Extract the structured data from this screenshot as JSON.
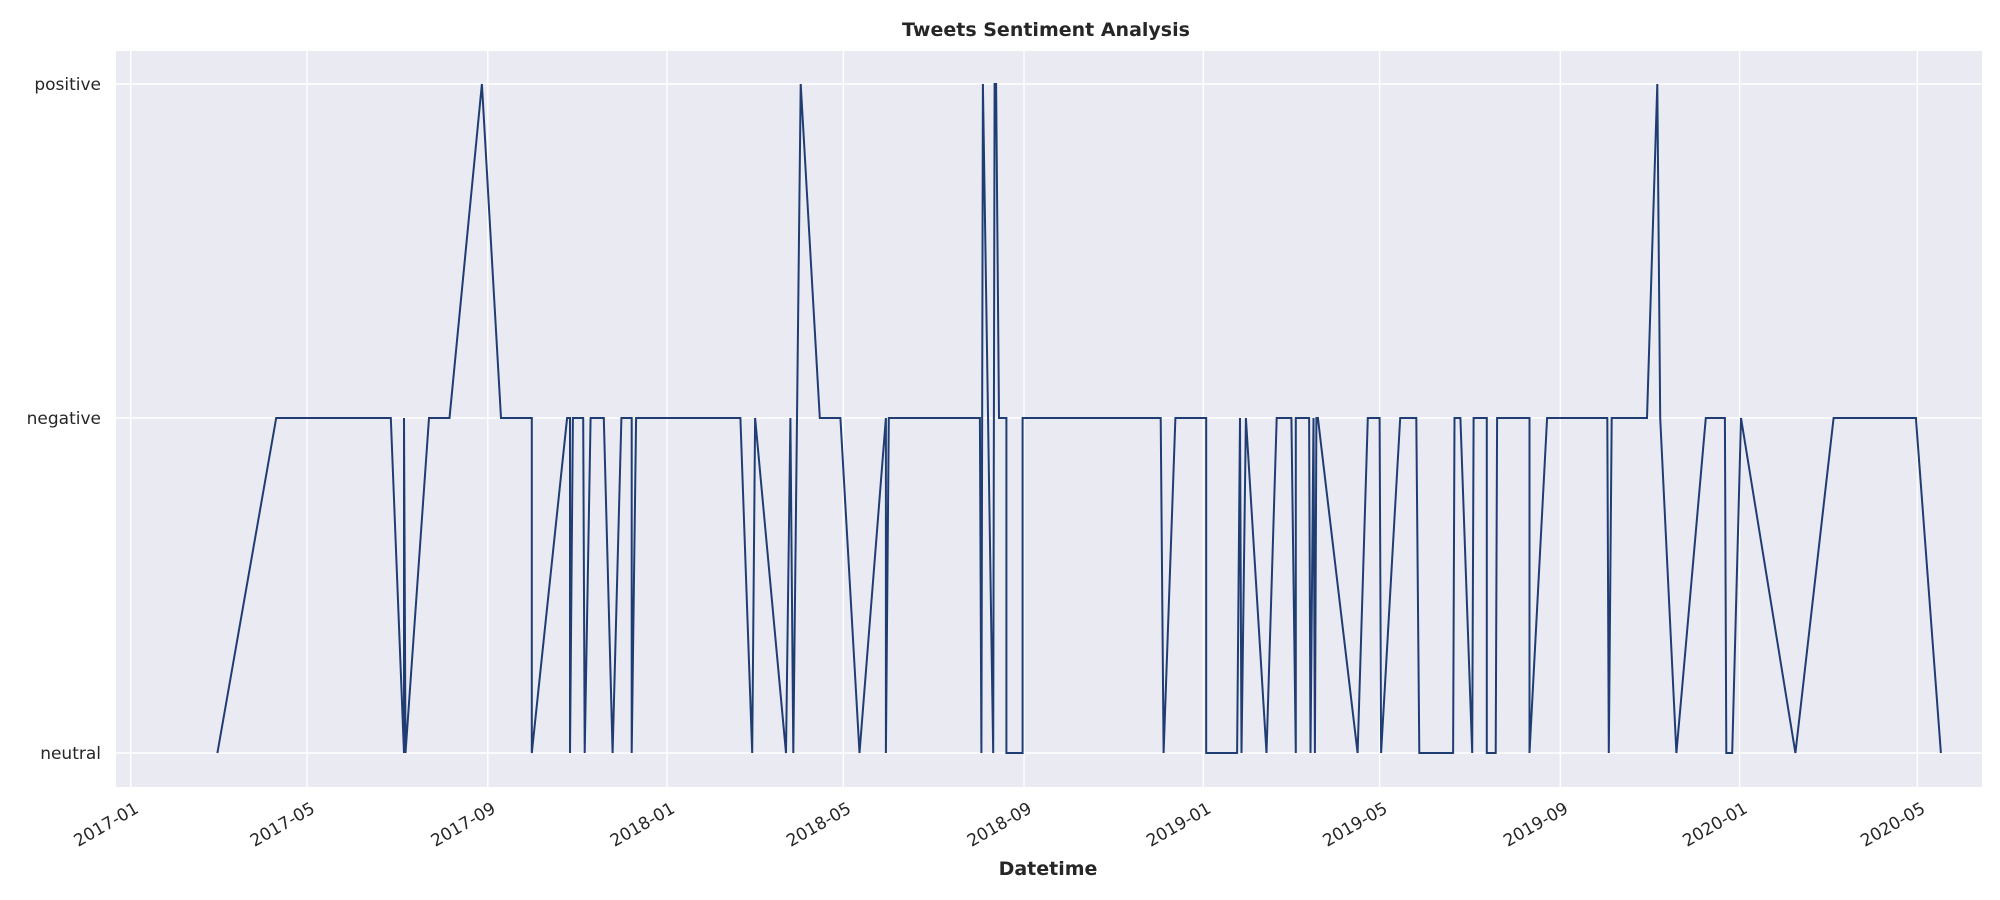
{
  "chart_data": {
    "type": "line",
    "title": "Tweets Sentiment Analysis",
    "xlabel": "Datetime",
    "ylabel": "",
    "y_categories": [
      "neutral",
      "negative",
      "positive"
    ],
    "x_ticks": [
      "2017-01",
      "2017-05",
      "2017-09",
      "2018-01",
      "2018-05",
      "2018-09",
      "2019-01",
      "2019-05",
      "2019-09",
      "2020-01",
      "2020-05"
    ],
    "xlim": [
      "2016-12-22",
      "2020-06-14"
    ],
    "grid": true,
    "line_color": "#1f3d73",
    "background_color": "#eaeaf2",
    "series": [
      {
        "points": [
          [
            "2017-03-01",
            "neutral"
          ],
          [
            "2017-04-10",
            "negative"
          ],
          [
            "2017-06-27",
            "negative"
          ],
          [
            "2017-07-06",
            "neutral"
          ],
          [
            "2017-07-06",
            "negative"
          ],
          [
            "2017-07-07",
            "neutral"
          ],
          [
            "2017-07-23",
            "negative"
          ],
          [
            "2017-08-06",
            "negative"
          ],
          [
            "2017-08-28",
            "positive"
          ],
          [
            "2017-09-10",
            "negative"
          ],
          [
            "2017-10-01",
            "negative"
          ],
          [
            "2017-10-01",
            "neutral"
          ],
          [
            "2017-10-25",
            "negative"
          ],
          [
            "2017-10-27",
            "negative"
          ],
          [
            "2017-10-27",
            "neutral"
          ],
          [
            "2017-10-29",
            "negative"
          ],
          [
            "2017-11-05",
            "negative"
          ],
          [
            "2017-11-06",
            "neutral"
          ],
          [
            "2017-11-10",
            "negative"
          ],
          [
            "2017-11-19",
            "negative"
          ],
          [
            "2017-11-25",
            "neutral"
          ],
          [
            "2017-12-01",
            "negative"
          ],
          [
            "2017-12-08",
            "negative"
          ],
          [
            "2017-12-08",
            "neutral"
          ],
          [
            "2017-12-11",
            "negative"
          ],
          [
            "2018-02-20",
            "negative"
          ],
          [
            "2018-02-28",
            "neutral"
          ],
          [
            "2018-03-02",
            "negative"
          ],
          [
            "2018-03-23",
            "neutral"
          ],
          [
            "2018-03-26",
            "negative"
          ],
          [
            "2018-03-28",
            "neutral"
          ],
          [
            "2018-04-02",
            "positive"
          ],
          [
            "2018-04-15",
            "negative"
          ],
          [
            "2018-04-29",
            "negative"
          ],
          [
            "2018-05-12",
            "neutral"
          ],
          [
            "2018-05-30",
            "negative"
          ],
          [
            "2018-05-30",
            "neutral"
          ],
          [
            "2018-06-01",
            "negative"
          ],
          [
            "2018-08-02",
            "negative"
          ],
          [
            "2018-08-03",
            "neutral"
          ],
          [
            "2018-08-04",
            "positive"
          ],
          [
            "2018-08-11",
            "neutral"
          ],
          [
            "2018-08-12",
            "positive"
          ],
          [
            "2018-08-13",
            "positive"
          ],
          [
            "2018-08-15",
            "negative"
          ],
          [
            "2018-08-20",
            "negative"
          ],
          [
            "2018-08-20",
            "neutral"
          ],
          [
            "2018-08-31",
            "neutral"
          ],
          [
            "2018-08-31",
            "negative"
          ],
          [
            "2018-12-03",
            "negative"
          ],
          [
            "2018-12-05",
            "neutral"
          ],
          [
            "2018-12-13",
            "negative"
          ],
          [
            "2019-01-03",
            "negative"
          ],
          [
            "2019-01-03",
            "neutral"
          ],
          [
            "2019-01-24",
            "neutral"
          ],
          [
            "2019-01-26",
            "negative"
          ],
          [
            "2019-01-27",
            "neutral"
          ],
          [
            "2019-01-30",
            "negative"
          ],
          [
            "2019-02-13",
            "neutral"
          ],
          [
            "2019-02-20",
            "negative"
          ],
          [
            "2019-03-02",
            "negative"
          ],
          [
            "2019-03-05",
            "neutral"
          ],
          [
            "2019-03-05",
            "negative"
          ],
          [
            "2019-03-14",
            "negative"
          ],
          [
            "2019-03-15",
            "neutral"
          ],
          [
            "2019-03-17",
            "negative"
          ],
          [
            "2019-03-18",
            "neutral"
          ],
          [
            "2019-03-19",
            "negative"
          ],
          [
            "2019-03-20",
            "negative"
          ],
          [
            "2019-04-16",
            "neutral"
          ],
          [
            "2019-04-23",
            "negative"
          ],
          [
            "2019-05-01",
            "negative"
          ],
          [
            "2019-05-02",
            "neutral"
          ],
          [
            "2019-05-15",
            "negative"
          ],
          [
            "2019-05-26",
            "negative"
          ],
          [
            "2019-05-28",
            "neutral"
          ],
          [
            "2019-06-20",
            "neutral"
          ],
          [
            "2019-06-21",
            "negative"
          ],
          [
            "2019-06-25",
            "negative"
          ],
          [
            "2019-07-03",
            "neutral"
          ],
          [
            "2019-07-04",
            "negative"
          ],
          [
            "2019-07-13",
            "negative"
          ],
          [
            "2019-07-13",
            "neutral"
          ],
          [
            "2019-07-19",
            "neutral"
          ],
          [
            "2019-07-20",
            "negative"
          ],
          [
            "2019-08-11",
            "negative"
          ],
          [
            "2019-08-11",
            "neutral"
          ],
          [
            "2019-08-23",
            "negative"
          ],
          [
            "2019-10-03",
            "negative"
          ],
          [
            "2019-10-04",
            "neutral"
          ],
          [
            "2019-10-06",
            "negative"
          ],
          [
            "2019-10-30",
            "negative"
          ],
          [
            "2019-11-06",
            "positive"
          ],
          [
            "2019-11-08",
            "negative"
          ],
          [
            "2019-11-19",
            "neutral"
          ],
          [
            "2019-12-09",
            "negative"
          ],
          [
            "2019-12-22",
            "negative"
          ],
          [
            "2019-12-23",
            "neutral"
          ],
          [
            "2019-12-27",
            "neutral"
          ],
          [
            "2020-01-02",
            "negative"
          ],
          [
            "2020-02-08",
            "neutral"
          ],
          [
            "2020-03-05",
            "negative"
          ],
          [
            "2020-04-30",
            "negative"
          ],
          [
            "2020-05-17",
            "neutral"
          ]
        ]
      }
    ]
  }
}
